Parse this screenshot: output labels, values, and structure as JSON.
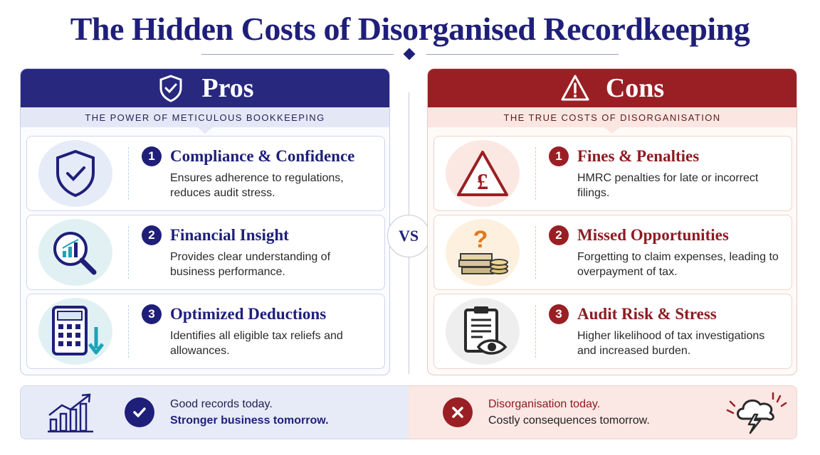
{
  "title": "The Hidden Costs of Disorganised Recordkeeping",
  "colors": {
    "pros_primary": "#28287f",
    "cons_primary": "#9a1f24",
    "pros_accent": "#1f1f7a",
    "cons_accent": "#8e1b22"
  },
  "pros": {
    "heading": "Pros",
    "heading_icon": "shield-check-icon",
    "subtitle": "THE POWER OF METICULOUS BOOKKEEPING",
    "items": [
      {
        "number": "1",
        "title": "Compliance & Confidence",
        "description": "Ensures adherence to regulations, reduces audit stress.",
        "icon": "shield-check-icon"
      },
      {
        "number": "2",
        "title": "Financial Insight",
        "description": "Provides clear understanding of business performance.",
        "icon": "magnifier-chart-icon"
      },
      {
        "number": "3",
        "title": "Optimized Deductions",
        "description": "Identifies all eligible tax reliefs and allowances.",
        "icon": "calculator-down-arrow-icon"
      }
    ]
  },
  "vs_label": "VS",
  "cons": {
    "heading": "Cons",
    "heading_icon": "warning-triangle-icon",
    "subtitle": "THE TRUE COSTS OF DISORGANISATION",
    "items": [
      {
        "number": "1",
        "title": "Fines & Penalties",
        "description": "HMRC penalties for late or incorrect filings.",
        "icon": "pound-warning-icon"
      },
      {
        "number": "2",
        "title": "Missed Opportunities",
        "description": "Forgetting to claim expenses, leading to overpayment of tax.",
        "icon": "money-question-icon"
      },
      {
        "number": "3",
        "title": "Audit Risk & Stress",
        "description": "Higher likelihood of tax investigations and increased burden.",
        "icon": "clipboard-eye-icon"
      }
    ]
  },
  "footer": {
    "left": {
      "line1": "Good records today.",
      "line2": "Stronger business tomorrow.",
      "icon": "growth-chart-icon",
      "badge": "check-icon"
    },
    "right": {
      "line1": "Disorganisation today.",
      "line2": "Costly consequences tomorrow.",
      "icon": "storm-cloud-icon",
      "badge": "x-icon"
    }
  }
}
